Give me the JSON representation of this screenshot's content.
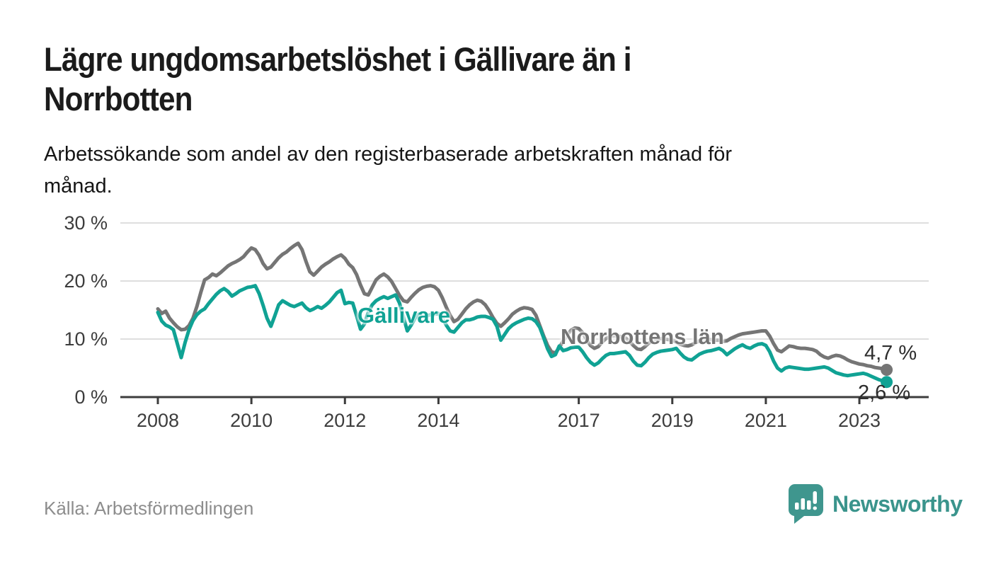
{
  "title": {
    "line1": "Lägre ungdomsarbetslöshet i Gällivare än i",
    "line2": "Norrbotten"
  },
  "subtitle": {
    "line1": "Arbetssökande som andel av den registerbaserade arbetskraften månad för",
    "line2": "månad."
  },
  "source": "Källa: Arbetsförmedlingen",
  "branding": {
    "name": "Newsworthy",
    "icon_color": "#3f968e",
    "text_color": "#3a948c"
  },
  "chart_data": {
    "type": "line",
    "unit": "%",
    "x_unit": "month",
    "x_range": [
      "2008-01",
      "2023-08"
    ],
    "x_ticks": [
      2008,
      2010,
      2012,
      2014,
      2017,
      2019,
      2021,
      2023
    ],
    "y_ticks": [
      0,
      10,
      20,
      30
    ],
    "y_tick_labels": [
      "0 %",
      "10 %",
      "20 %",
      "30 %"
    ],
    "ylim": [
      0,
      30
    ],
    "grid": "horizontal",
    "legend": "inline-labels",
    "series": [
      {
        "id": "norrbotten",
        "name": "Norrbottens län",
        "color": "#757575",
        "end_value": 4.7,
        "end_label": "4,7 %",
        "values": [
          15.2,
          14.4,
          14.8,
          13.6,
          12.8,
          12.1,
          11.6,
          11.7,
          12.3,
          13.6,
          15.6,
          18.0,
          20.2,
          20.6,
          21.2,
          20.9,
          21.4,
          22.0,
          22.6,
          23.0,
          23.3,
          23.7,
          24.2,
          25.0,
          25.7,
          25.4,
          24.4,
          23.0,
          22.1,
          22.4,
          23.2,
          24.0,
          24.6,
          25.0,
          25.6,
          26.1,
          26.5,
          25.4,
          23.4,
          21.6,
          21.0,
          21.7,
          22.4,
          22.9,
          23.3,
          23.8,
          24.2,
          24.5,
          23.9,
          22.9,
          22.3,
          21.1,
          19.3,
          17.8,
          17.6,
          18.9,
          20.2,
          20.8,
          21.2,
          20.7,
          19.9,
          18.7,
          17.5,
          16.6,
          16.4,
          17.2,
          17.9,
          18.5,
          18.9,
          19.1,
          19.2,
          19.0,
          18.4,
          17.1,
          15.5,
          14.1,
          13.0,
          13.4,
          14.3,
          15.2,
          15.9,
          16.4,
          16.7,
          16.5,
          15.9,
          14.9,
          13.7,
          12.7,
          12.2,
          12.8,
          13.5,
          14.3,
          14.8,
          15.2,
          15.4,
          15.3,
          15.1,
          14.1,
          12.3,
          10.5,
          8.9,
          7.8,
          7.6,
          8.5,
          9.7,
          10.7,
          11.5,
          11.9,
          11.8,
          11.1,
          9.9,
          8.9,
          8.4,
          8.7,
          9.5,
          10.1,
          10.4,
          10.6,
          10.5,
          10.4,
          10.2,
          9.6,
          8.9,
          8.3,
          8.2,
          8.7,
          9.3,
          9.8,
          10.0,
          10.1,
          10.0,
          9.9,
          9.8,
          9.5,
          9.1,
          8.9,
          8.8,
          9.0,
          9.4,
          9.7,
          9.8,
          9.9,
          9.9,
          9.8,
          9.8,
          9.6,
          9.7,
          10.1,
          10.4,
          10.7,
          10.9,
          11.0,
          11.1,
          11.2,
          11.3,
          11.4,
          11.4,
          10.5,
          9.2,
          8.1,
          7.8,
          8.3,
          8.8,
          8.7,
          8.5,
          8.4,
          8.4,
          8.3,
          8.2,
          7.9,
          7.3,
          6.9,
          6.7,
          7.0,
          7.2,
          7.1,
          6.8,
          6.4,
          6.1,
          5.9,
          5.7,
          5.6,
          5.4,
          5.3,
          5.1,
          5.0,
          4.9,
          4.7
        ]
      },
      {
        "id": "gallivare",
        "name": "Gällivare",
        "color": "#10a294",
        "end_value": 2.6,
        "end_label": "2,6 %",
        "values": [
          14.6,
          13.1,
          12.4,
          12.1,
          11.6,
          9.2,
          6.8,
          9.4,
          11.6,
          13.2,
          14.2,
          14.8,
          15.2,
          16.1,
          16.9,
          17.7,
          18.3,
          18.7,
          18.2,
          17.4,
          17.8,
          18.3,
          18.6,
          18.9,
          19.0,
          19.2,
          17.8,
          15.8,
          13.6,
          12.2,
          14.0,
          15.9,
          16.6,
          16.2,
          15.8,
          15.6,
          15.9,
          16.2,
          15.4,
          14.9,
          15.2,
          15.6,
          15.3,
          15.8,
          16.4,
          17.2,
          18.0,
          18.4,
          16.1,
          16.3,
          16.2,
          14.0,
          11.7,
          12.6,
          14.6,
          15.9,
          16.6,
          17.0,
          17.3,
          17.0,
          17.3,
          17.6,
          16.2,
          13.8,
          11.4,
          12.4,
          13.6,
          14.3,
          14.2,
          14.0,
          14.2,
          14.3,
          14.4,
          13.6,
          12.4,
          11.4,
          11.2,
          12.0,
          12.8,
          13.3,
          13.3,
          13.5,
          13.8,
          13.9,
          13.9,
          13.7,
          13.4,
          12.2,
          9.8,
          10.8,
          11.8,
          12.4,
          12.8,
          13.1,
          13.4,
          13.6,
          13.5,
          13.0,
          12.0,
          10.2,
          8.3,
          7.0,
          7.3,
          8.8,
          8.0,
          8.2,
          8.5,
          8.6,
          8.6,
          7.8,
          6.8,
          6.0,
          5.5,
          5.9,
          6.6,
          7.2,
          7.5,
          7.5,
          7.6,
          7.7,
          7.8,
          7.2,
          6.2,
          5.5,
          5.4,
          6.0,
          6.8,
          7.4,
          7.7,
          7.9,
          8.0,
          8.1,
          8.2,
          8.4,
          7.6,
          6.9,
          6.5,
          6.4,
          6.9,
          7.4,
          7.7,
          7.9,
          8.0,
          8.2,
          8.4,
          8.0,
          7.3,
          7.8,
          8.3,
          8.7,
          9.0,
          8.6,
          8.4,
          8.8,
          9.1,
          9.2,
          8.9,
          7.8,
          6.2,
          5.0,
          4.5,
          5.0,
          5.2,
          5.1,
          5.0,
          4.9,
          4.8,
          4.8,
          4.9,
          5.0,
          5.1,
          5.2,
          5.0,
          4.6,
          4.2,
          4.0,
          3.8,
          3.7,
          3.8,
          3.9,
          4.0,
          4.1,
          3.9,
          3.6,
          3.3,
          3.0,
          2.8,
          2.6
        ]
      }
    ]
  }
}
